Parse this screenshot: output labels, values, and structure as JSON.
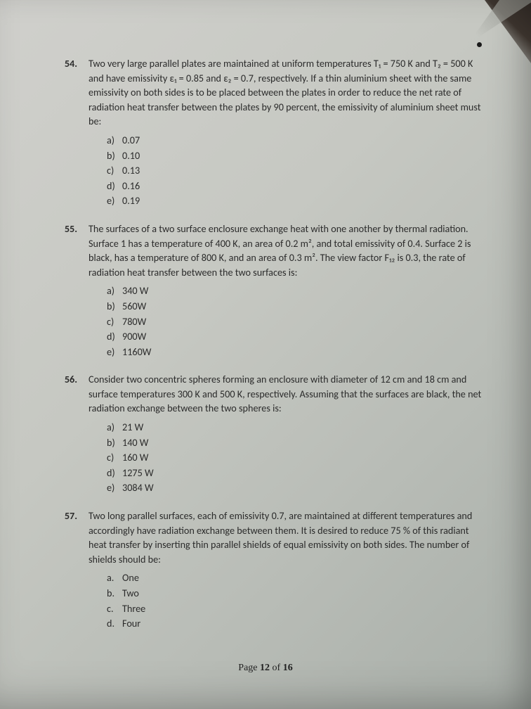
{
  "questions": [
    {
      "number": "54.",
      "stem": "Two very large parallel plates are maintained at uniform temperatures T₁ = 750 K and T₂ = 500 K and have emissivity ε₁ = 0.85 and ε₂ = 0.7, respectively. If a thin aluminium sheet with the same emissivity on both sides is to be placed between the plates in order to reduce the net rate of radiation heat transfer between the plates by 90 percent, the emissivity of aluminium sheet must be:",
      "options": [
        {
          "l": "a)",
          "t": "0.07"
        },
        {
          "l": "b)",
          "t": "0.10"
        },
        {
          "l": "c)",
          "t": "0.13"
        },
        {
          "l": "d)",
          "t": "0.16"
        },
        {
          "l": "e)",
          "t": "0.19"
        }
      ]
    },
    {
      "number": "55.",
      "stem": "The surfaces of a two surface enclosure exchange heat with one another by thermal radiation. Surface 1 has a temperature of 400 K, an area of 0.2 m², and total emissivity of 0.4. Surface 2 is black, has a temperature of 800 K, and an area of 0.3 m². The view factor F₁₂ is 0.3, the rate of radiation heat transfer between the two surfaces is:",
      "options": [
        {
          "l": "a)",
          "t": "340 W"
        },
        {
          "l": "b)",
          "t": "560W"
        },
        {
          "l": "c)",
          "t": "780W"
        },
        {
          "l": "d)",
          "t": "900W"
        },
        {
          "l": "e)",
          "t": "1160W"
        }
      ]
    },
    {
      "number": "56.",
      "stem": "Consider two concentric spheres forming an enclosure with diameter of 12 cm and 18 cm and surface temperatures 300 K and 500 K, respectively. Assuming that the surfaces are black, the net radiation exchange between the two spheres is:",
      "options": [
        {
          "l": "a)",
          "t": "21 W"
        },
        {
          "l": "b)",
          "t": "140 W"
        },
        {
          "l": "c)",
          "t": "160 W"
        },
        {
          "l": "d)",
          "t": "1275 W"
        },
        {
          "l": "e)",
          "t": "3084 W"
        }
      ]
    },
    {
      "number": "57.",
      "stem": "Two long parallel surfaces, each of emissivity 0.7, are maintained at different temperatures and accordingly have radiation exchange between them. It is desired to reduce 75 % of this radiant heat transfer by inserting thin parallel shields of equal emissivity on both sides. The number of shields should be:",
      "options": [
        {
          "l": "a.",
          "t": "One"
        },
        {
          "l": "b.",
          "t": "Two"
        },
        {
          "l": "c.",
          "t": "Three"
        },
        {
          "l": "d.",
          "t": "Four"
        }
      ]
    }
  ],
  "footer": {
    "prefix": "Page ",
    "current": "12",
    "of": " of ",
    "total": "16"
  }
}
